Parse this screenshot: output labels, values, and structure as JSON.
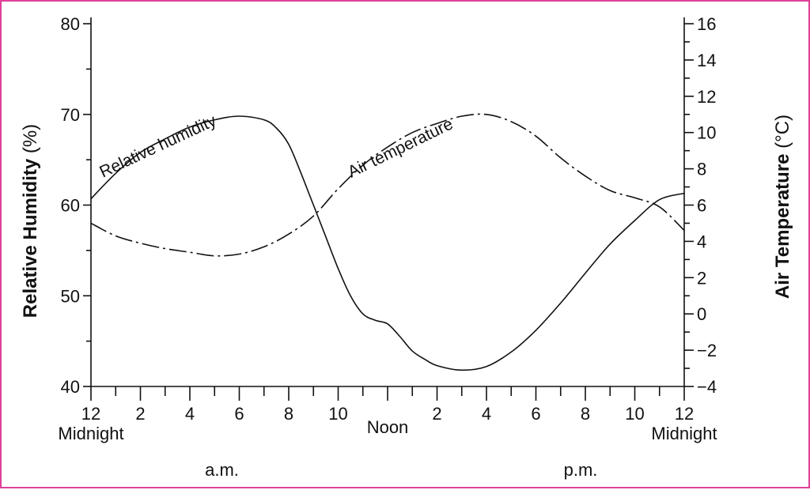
{
  "chart_data": {
    "type": "line",
    "x_unit": "hour of day",
    "x_ticks": [
      {
        "value": 0,
        "labels": [
          "12",
          "Midnight"
        ]
      },
      {
        "value": 2,
        "labels": [
          "2"
        ]
      },
      {
        "value": 4,
        "labels": [
          "4"
        ]
      },
      {
        "value": 6,
        "labels": [
          "6"
        ]
      },
      {
        "value": 8,
        "labels": [
          "8"
        ]
      },
      {
        "value": 10,
        "labels": [
          "10"
        ]
      },
      {
        "value": 12,
        "labels": [
          "Noon"
        ]
      },
      {
        "value": 14,
        "labels": [
          "2"
        ]
      },
      {
        "value": 16,
        "labels": [
          "4"
        ]
      },
      {
        "value": 18,
        "labels": [
          "6"
        ]
      },
      {
        "value": 20,
        "labels": [
          "8"
        ]
      },
      {
        "value": 22,
        "labels": [
          "10"
        ]
      },
      {
        "value": 24,
        "labels": [
          "12",
          "Midnight"
        ]
      }
    ],
    "period_labels": [
      "a.m.",
      "p.m."
    ],
    "xlim": [
      0,
      24
    ],
    "y_left": {
      "title_bold": "Relative Humidity",
      "title_unit": "(%)",
      "ylim": [
        40,
        80
      ],
      "ticks": [
        "40",
        "50",
        "60",
        "70",
        "80"
      ]
    },
    "y_right": {
      "title_bold": "Air Temperature",
      "title_unit": "(°C)",
      "ylim": [
        -4,
        16
      ],
      "ticks": [
        "−4",
        "−2",
        "0",
        "2",
        "4",
        "6",
        "8",
        "10",
        "12",
        "14",
        "16"
      ]
    },
    "series": [
      {
        "name": "Relative humidity",
        "axis": "left",
        "style": "solid",
        "x": [
          0,
          1,
          2,
          3,
          4,
          5,
          6,
          7,
          7.5,
          8,
          8.5,
          9,
          9.5,
          10,
          10.5,
          11,
          11.5,
          12,
          12.5,
          13,
          13.5,
          14,
          15,
          16,
          17,
          18,
          19,
          20,
          21,
          22,
          23,
          24
        ],
        "y": [
          60.7,
          63.5,
          65.8,
          67.3,
          68.6,
          69.4,
          69.8,
          69.4,
          68.5,
          66.7,
          63.5,
          60,
          56.5,
          53,
          50,
          48,
          47.3,
          46.9,
          45.5,
          43.9,
          43,
          42.3,
          41.8,
          42.2,
          43.8,
          46.2,
          49.2,
          52.5,
          55.7,
          58.3,
          60.6,
          61.3
        ]
      },
      {
        "name": "Air temperature",
        "axis": "right",
        "style": "dashed",
        "x": [
          0,
          1,
          2,
          3,
          4,
          5,
          6,
          7,
          8,
          9,
          10,
          11,
          12,
          13,
          14,
          15,
          16,
          17,
          18,
          19,
          20,
          21,
          22,
          23,
          24
        ],
        "y": [
          5,
          4.3,
          3.9,
          3.6,
          3.4,
          3.2,
          3.3,
          3.7,
          4.4,
          5.4,
          6.9,
          8.2,
          9.2,
          10,
          10.5,
          10.9,
          11,
          10.6,
          9.8,
          8.6,
          7.6,
          6.8,
          6.4,
          5.9,
          4.6
        ]
      }
    ],
    "annotations": [
      {
        "text": "Relative humidity",
        "series": "Relative humidity"
      },
      {
        "text": "Air temperature",
        "series": "Air temperature"
      }
    ],
    "grid": false,
    "legend": "none"
  }
}
